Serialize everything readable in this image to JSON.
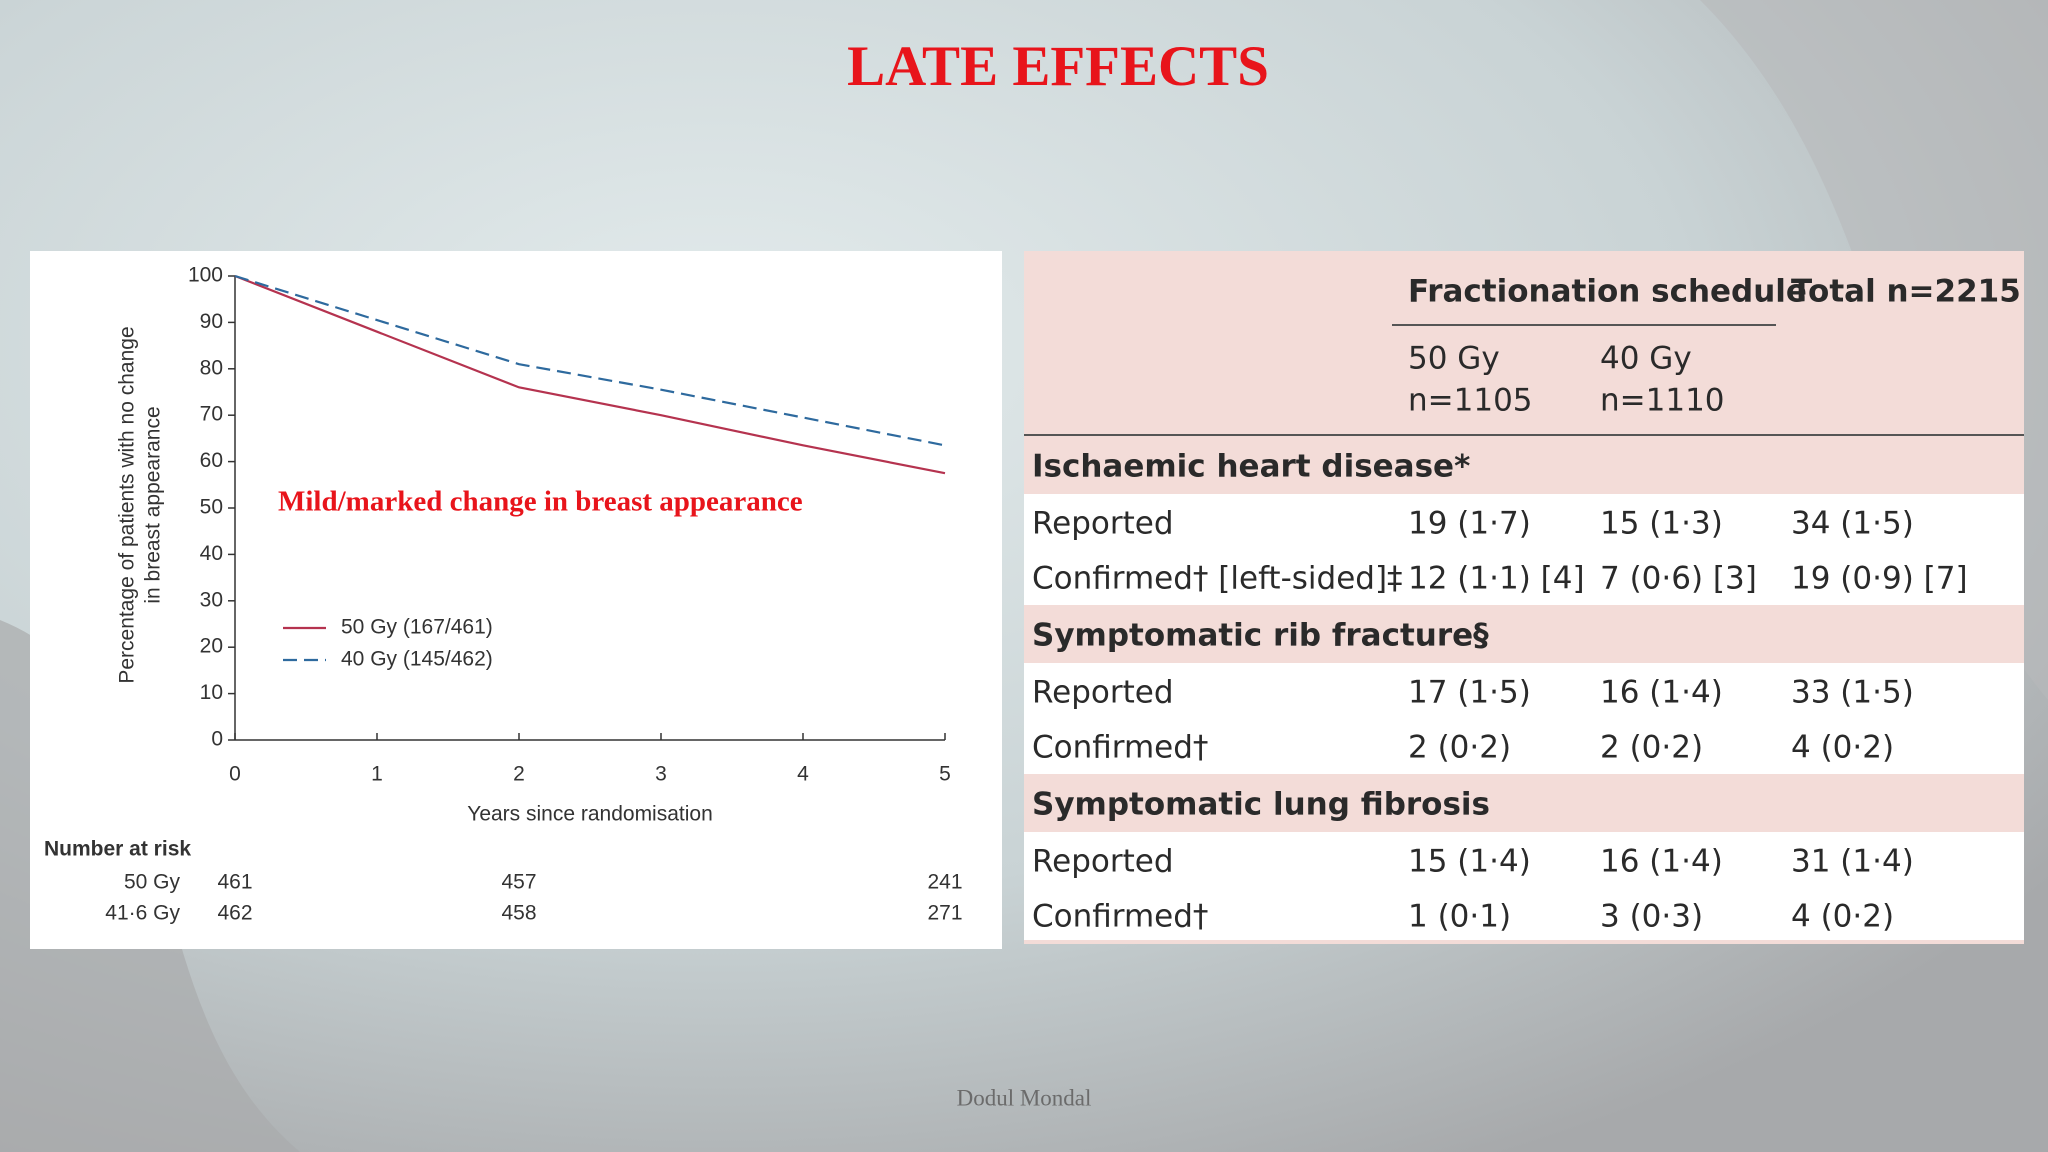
{
  "title": "LATE EFFECTS",
  "chart_data": {
    "type": "line",
    "annotation": "Mild/marked change in breast appearance",
    "xlabel": "Years since randomisation",
    "ylabel": [
      "Percentage of patients with no change",
      "in breast appearance"
    ],
    "x": [
      0,
      1,
      2,
      3,
      4,
      5
    ],
    "series": [
      {
        "name": "50 Gy (167/461)",
        "color": "#b5334f",
        "dash": false,
        "values": [
          100,
          88,
          76,
          70,
          63.5,
          57.5
        ]
      },
      {
        "name": "40 Gy (145/462)",
        "color": "#2e6a9e",
        "dash": true,
        "values": [
          100,
          90.5,
          81,
          75.5,
          69.5,
          63.5
        ]
      }
    ],
    "xlim": [
      0,
      5
    ],
    "xticks": [
      0,
      1,
      2,
      3,
      4,
      5
    ],
    "ylim": [
      0,
      100
    ],
    "yticks": [
      0,
      10,
      20,
      30,
      40,
      50,
      60,
      70,
      80,
      90,
      100
    ],
    "risk_table": {
      "title": "Number at risk",
      "rows": [
        {
          "name": "50 Gy",
          "values": [
            461,
            null,
            457,
            null,
            null,
            241
          ]
        },
        {
          "name": "41·6 Gy",
          "values": [
            462,
            null,
            458,
            null,
            null,
            271
          ]
        }
      ]
    }
  },
  "table": {
    "header": {
      "group": "Fractionation schedule",
      "total": "Total n=2215",
      "columns": [
        [
          "50 Gy",
          "n=1105"
        ],
        [
          "40 Gy",
          "n=1110"
        ]
      ]
    },
    "sections": [
      {
        "title": "Ischaemic heart disease*",
        "rows": [
          [
            "Reported",
            "19 (1·7)",
            "15 (1·3)",
            "34 (1·5)"
          ],
          [
            "Confirmed† [left-sided]‡",
            "12 (1·1) [4]",
            "7 (0·6) [3]",
            "19 (0·9) [7]"
          ]
        ]
      },
      {
        "title": "Symptomatic rib fracture§",
        "rows": [
          [
            "Reported",
            "17 (1·5)",
            "16 (1·4)",
            "33 (1·5)"
          ],
          [
            "Confirmed†",
            "2 (0·2)",
            "2 (0·2)",
            "4 (0·2)"
          ]
        ]
      },
      {
        "title": "Symptomatic lung fibrosis",
        "rows": [
          [
            "Reported",
            "15 (1·4)",
            "16 (1·4)",
            "31 (1·4)"
          ],
          [
            "Confirmed†",
            "1 (0·1)",
            "3 (0·3)",
            "4 (0·2)"
          ]
        ]
      }
    ]
  },
  "footer": "Dodul Mondal"
}
